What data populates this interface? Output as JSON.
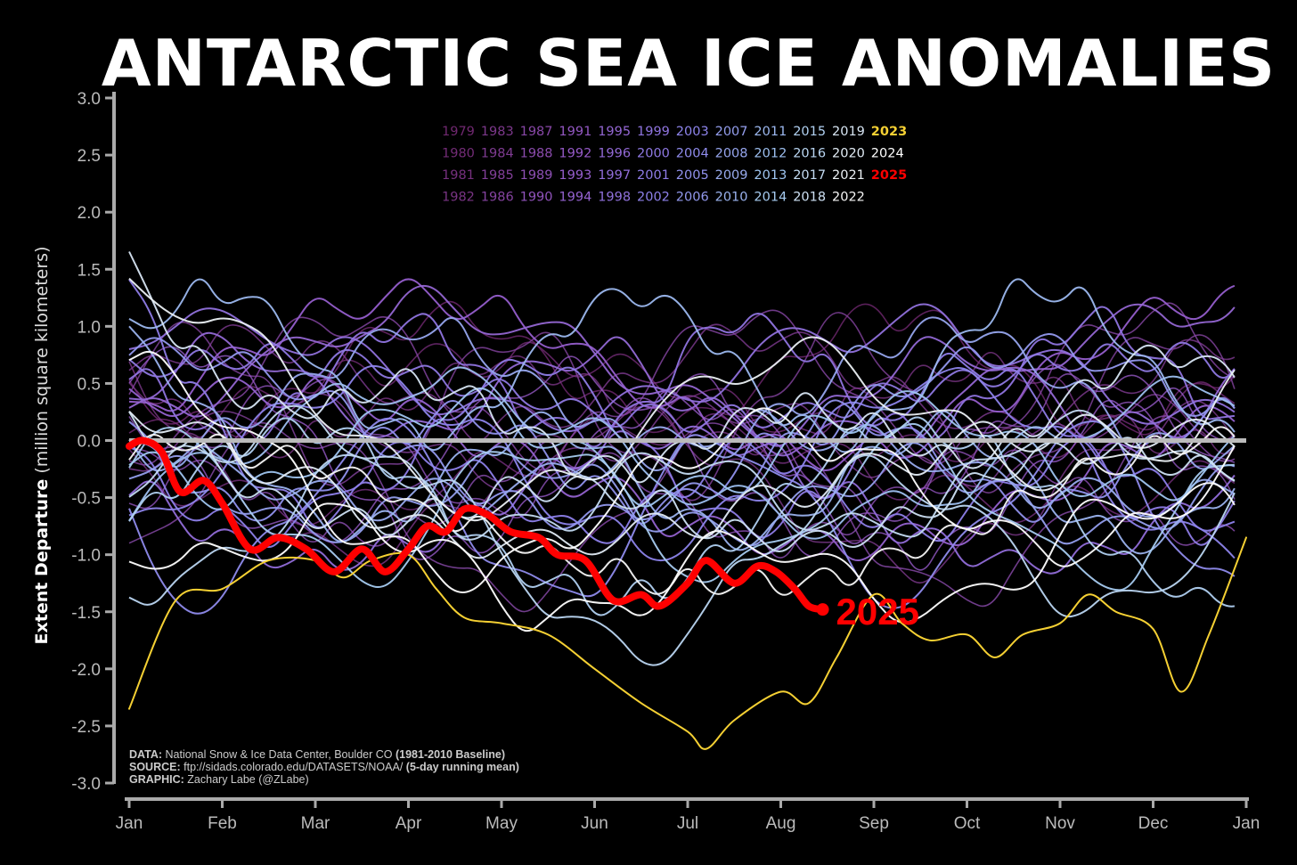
{
  "chart_data": {
    "type": "line",
    "title": "ANTARCTIC SEA ICE ANOMALIES",
    "ylabel_bold": "Extent Departure",
    "ylabel_rest": " (million square kilometers)",
    "ylim": [
      -3.0,
      3.0
    ],
    "yticks": [
      "3.0",
      "2.5",
      "2.0",
      "1.5",
      "1.0",
      "0.5",
      "0.0",
      "-0.5",
      "-1.0",
      "-1.5",
      "-2.0",
      "-2.5",
      "-3.0"
    ],
    "xticks": [
      "Jan",
      "Feb",
      "Mar",
      "Apr",
      "May",
      "Jun",
      "Jul",
      "Aug",
      "Sep",
      "Oct",
      "Nov",
      "Dec",
      "Jan"
    ],
    "grid": false,
    "zero_line": true,
    "legend_placement": "top-center",
    "legend_columns": [
      [
        "1979",
        "1980",
        "1981",
        "1982"
      ],
      [
        "1983",
        "1984",
        "1985",
        "1986"
      ],
      [
        "1987",
        "1988",
        "1989",
        "1990"
      ],
      [
        "1991",
        "1992",
        "1993",
        "1994"
      ],
      [
        "1995",
        "1996",
        "1997",
        "1998"
      ],
      [
        "1999",
        "2000",
        "2001",
        "2002"
      ],
      [
        "2003",
        "2004",
        "2005",
        "2006"
      ],
      [
        "2007",
        "2008",
        "2009",
        "2010"
      ],
      [
        "2011",
        "2012",
        "2013",
        "2014"
      ],
      [
        "2015",
        "2016",
        "2017",
        "2018"
      ],
      [
        "2019",
        "2020",
        "2021",
        "2022"
      ],
      [
        "2023",
        "2024",
        "2025"
      ]
    ],
    "highlight_series": [
      {
        "name": "2023",
        "color": "#f5d033",
        "x": [
          0,
          0.5,
          1,
          1.5,
          2,
          2.3,
          2.6,
          3,
          3.3,
          3.6,
          4,
          4.5,
          5,
          5.5,
          6,
          6.2,
          6.5,
          7,
          7.3,
          7.6,
          8,
          8.3,
          8.6,
          9,
          9.3,
          9.6,
          10,
          10.3,
          10.6,
          11,
          11.3,
          11.6,
          12
        ],
        "y": [
          -2.35,
          -1.4,
          -1.3,
          -1.05,
          -1.05,
          -1.2,
          -1.05,
          -1.0,
          -1.3,
          -1.55,
          -1.6,
          -1.7,
          -2.0,
          -2.3,
          -2.55,
          -2.7,
          -2.45,
          -2.2,
          -2.3,
          -1.9,
          -1.35,
          -1.6,
          -1.75,
          -1.7,
          -1.9,
          -1.7,
          -1.6,
          -1.35,
          -1.5,
          -1.65,
          -2.2,
          -1.7,
          -0.85
        ]
      },
      {
        "name": "2025",
        "color": "#ff0000",
        "label": "2025",
        "x": [
          0,
          0.15,
          0.35,
          0.55,
          0.8,
          1.0,
          1.3,
          1.6,
          1.9,
          2.2,
          2.5,
          2.75,
          3.0,
          3.2,
          3.4,
          3.6,
          3.85,
          4.1,
          4.4,
          4.6,
          4.9,
          5.2,
          5.5,
          5.7,
          6.0,
          6.2,
          6.5,
          6.75,
          6.95,
          7.15,
          7.3,
          7.45
        ],
        "y": [
          -0.05,
          0.0,
          -0.1,
          -0.45,
          -0.35,
          -0.55,
          -0.95,
          -0.85,
          -0.95,
          -1.15,
          -0.95,
          -1.15,
          -0.95,
          -0.75,
          -0.8,
          -0.6,
          -0.65,
          -0.8,
          -0.85,
          -1.0,
          -1.05,
          -1.4,
          -1.35,
          -1.45,
          -1.25,
          -1.05,
          -1.25,
          -1.1,
          -1.15,
          -1.3,
          -1.45,
          -1.48
        ]
      }
    ]
  },
  "credits": {
    "line1_label": "DATA:",
    "line1_text": " National Snow & Ice Data Center, Boulder CO ",
    "line1_bold": "(1981-2010 Baseline)",
    "line2_label": "SOURCE:",
    "line2_text": " ftp://sidads.colorado.edu/DATASETS/NOAA/ ",
    "line2_bold": "(5-day running mean)",
    "line3_label": "GRAPHIC:",
    "line3_text": " Zachary Labe (@ZLabe)"
  }
}
